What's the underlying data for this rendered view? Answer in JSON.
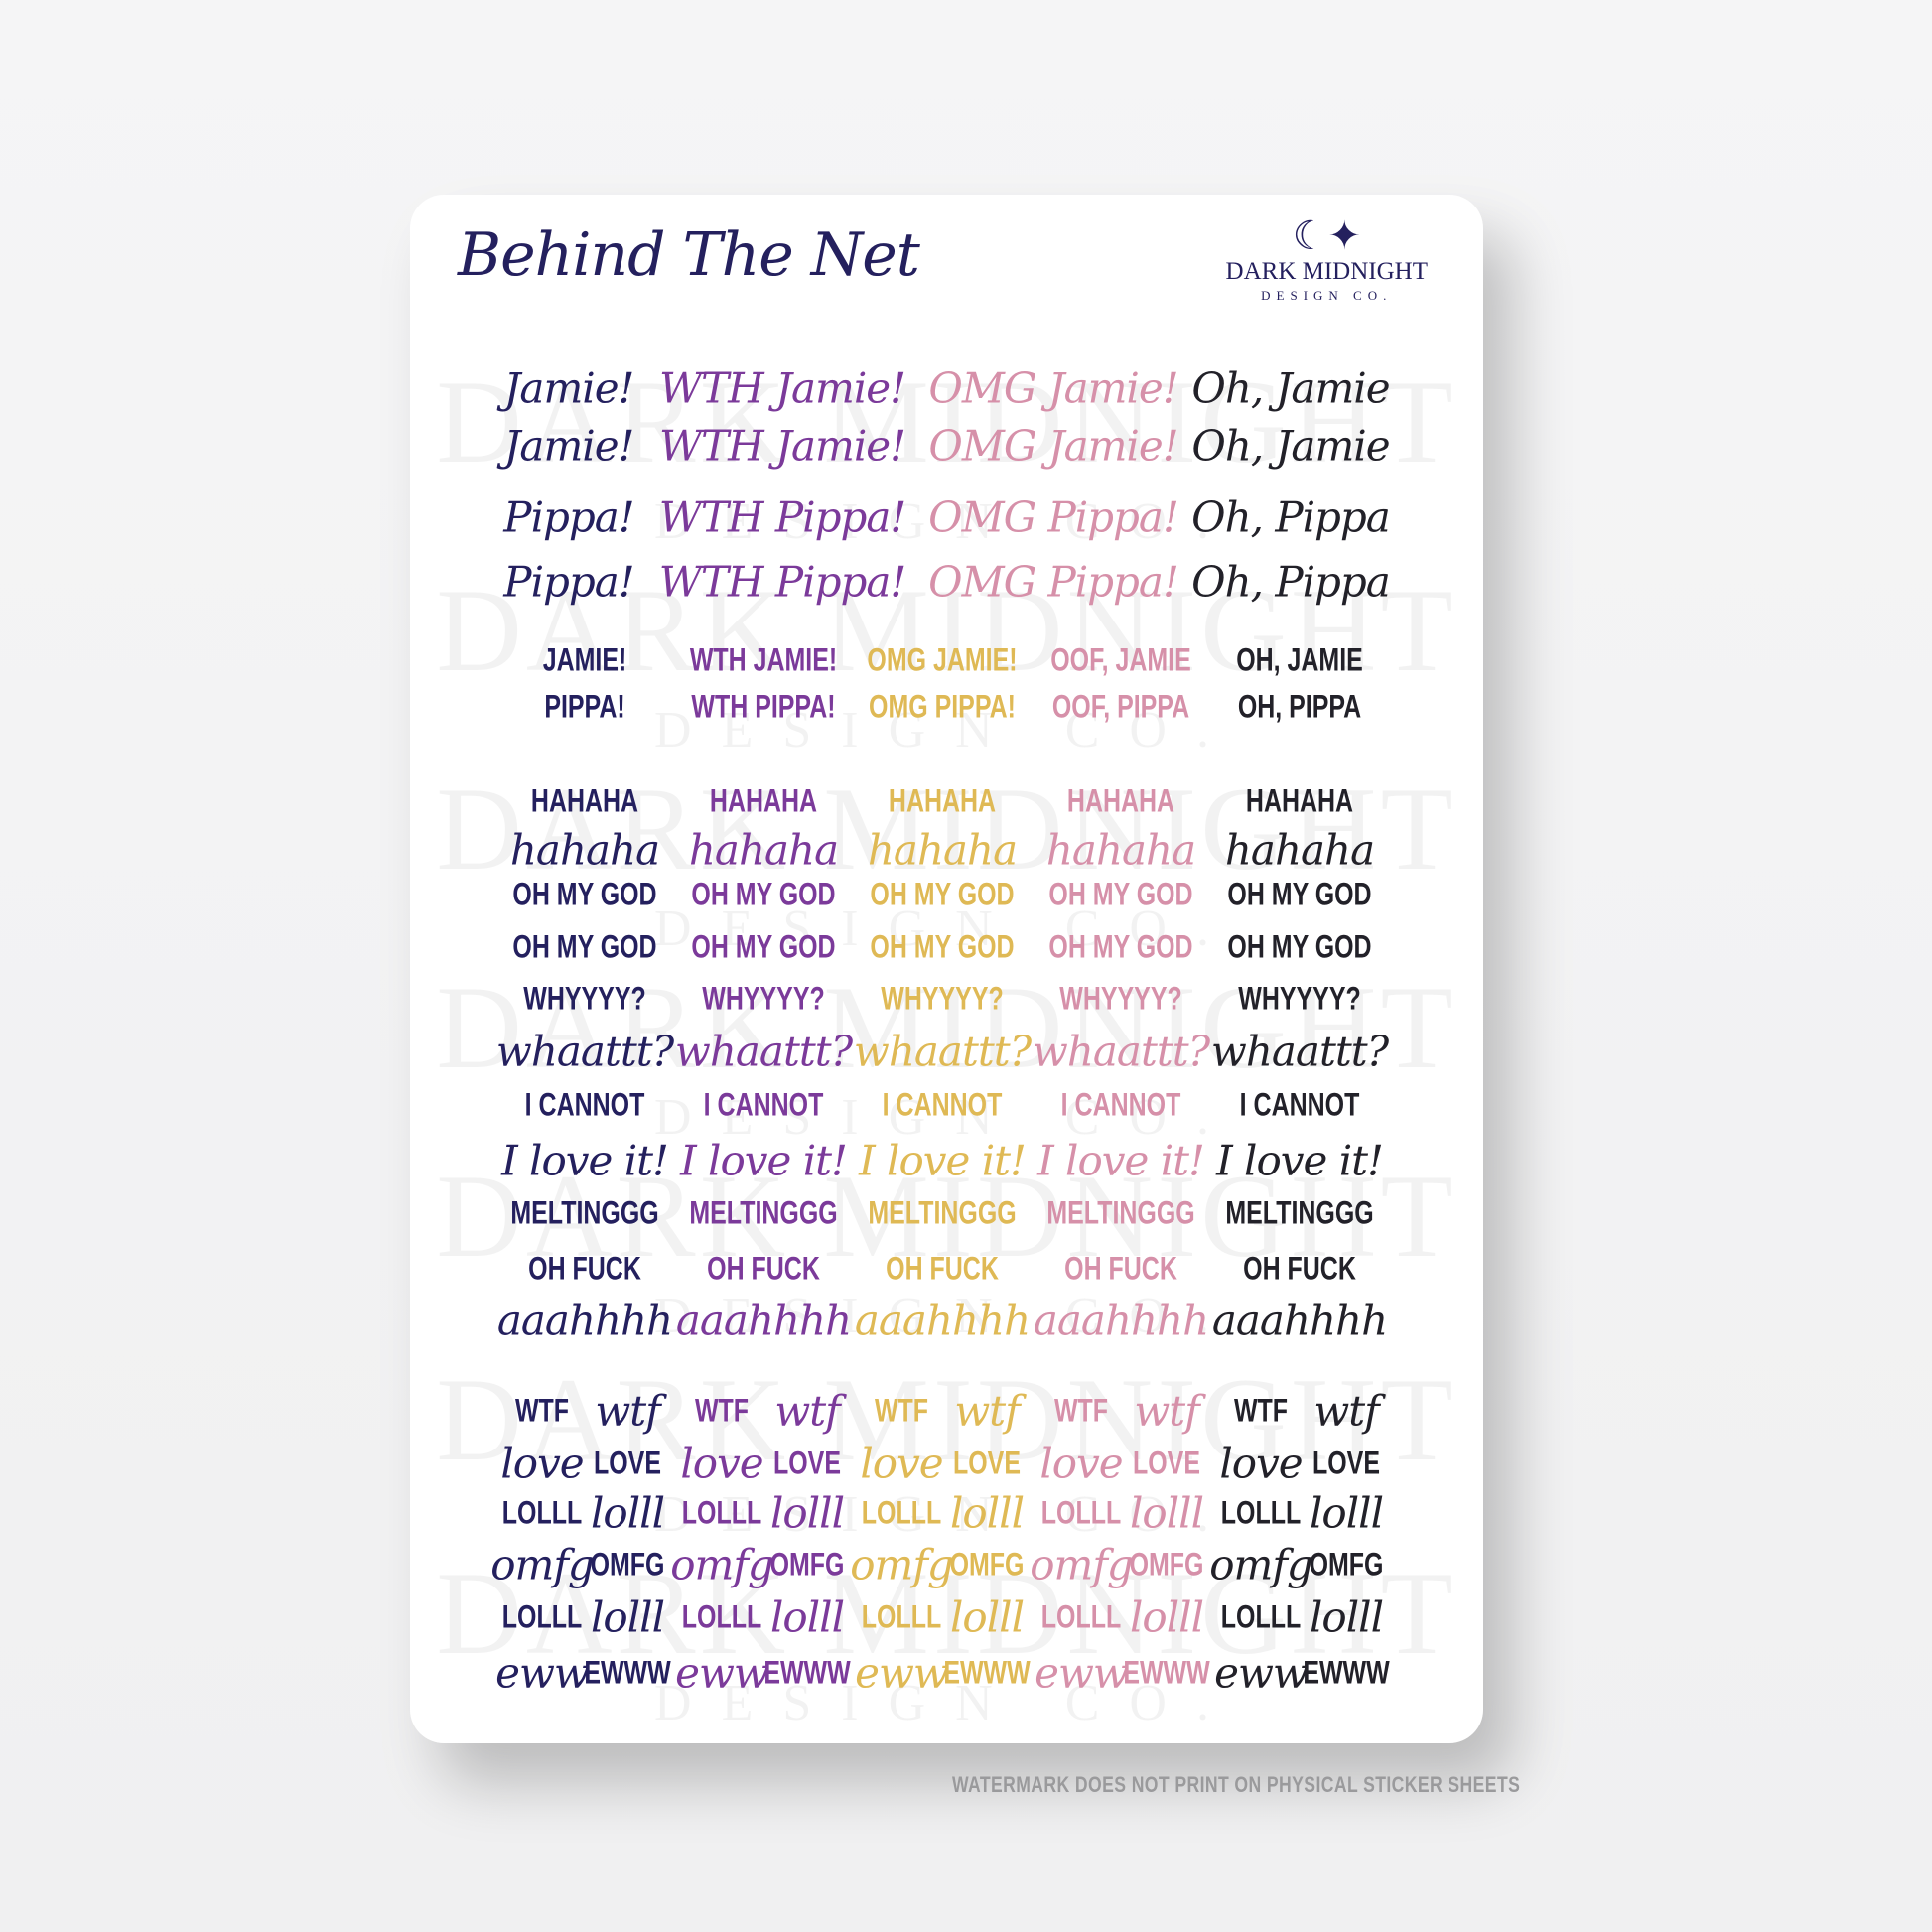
{
  "sheet": {
    "title": "Behind The Net",
    "logo": {
      "icon": "crescent-moon-star-icon",
      "line1": "DARK MIDNIGHT",
      "line2": "DESIGN CO."
    },
    "watermark": {
      "line1": "DARK MIDNIGHT",
      "line2": "DESIGN CO."
    }
  },
  "colors": {
    "navy": "#24205e",
    "purple": "#7b3a9a",
    "gold": "#dfb955",
    "pink": "#d690a9",
    "black": "#222129"
  },
  "section1_script": {
    "colors": [
      "navy",
      "purple",
      "pink",
      "black"
    ],
    "rows": [
      [
        "Jamie!",
        "WTH Jamie!",
        "OMG Jamie!",
        "Oh, Jamie"
      ],
      [
        "Jamie!",
        "WTH Jamie!",
        "OMG Jamie!",
        "Oh, Jamie"
      ],
      [
        "Pippa!",
        "WTH Pippa!",
        "OMG Pippa!",
        "Oh, Pippa"
      ],
      [
        "Pippa!",
        "WTH Pippa!",
        "OMG Pippa!",
        "Oh, Pippa"
      ]
    ]
  },
  "section1_bold": {
    "colors": [
      "navy",
      "purple",
      "gold",
      "pink",
      "black"
    ],
    "rows": [
      [
        "JAMIE!",
        "WTH JAMIE!",
        "OMG JAMIE!",
        "OOF, JAMIE",
        "OH, JAMIE"
      ],
      [
        "PIPPA!",
        "WTH PIPPA!",
        "OMG PIPPA!",
        "OOF, PIPPA",
        "OH, PIPPA"
      ]
    ]
  },
  "section2": {
    "colors": [
      "navy",
      "purple",
      "gold",
      "pink",
      "black"
    ],
    "rows": [
      {
        "text": "HAHAHA",
        "style": "bold"
      },
      {
        "text": "hahaha",
        "style": "script"
      },
      {
        "text": "OH MY GOD",
        "style": "bold"
      },
      {
        "text": "OH MY GOD",
        "style": "bold"
      },
      {
        "text": "WHYYYY?",
        "style": "bold"
      },
      {
        "text": "whaattt?",
        "style": "script"
      },
      {
        "text": "I CANNOT",
        "style": "bold"
      },
      {
        "text": "I love it!",
        "style": "script"
      },
      {
        "text": "MELTINGGG",
        "style": "bold"
      },
      {
        "text": "OH FUCK",
        "style": "bold"
      },
      {
        "text": "aaahhhh",
        "style": "script"
      }
    ]
  },
  "section3": {
    "colors": [
      "navy",
      "purple",
      "gold",
      "pink",
      "black"
    ],
    "rows": [
      [
        {
          "text": "WTF",
          "style": "bold"
        },
        {
          "text": "wtf",
          "style": "script"
        }
      ],
      [
        {
          "text": "love",
          "style": "script"
        },
        {
          "text": "LOVE",
          "style": "bold"
        }
      ],
      [
        {
          "text": "LOLLL",
          "style": "bold"
        },
        {
          "text": "lolll",
          "style": "script"
        }
      ],
      [
        {
          "text": "omfg",
          "style": "script"
        },
        {
          "text": "OMFG",
          "style": "bold"
        }
      ],
      [
        {
          "text": "LOLLL",
          "style": "bold"
        },
        {
          "text": "lolll",
          "style": "script"
        }
      ],
      [
        {
          "text": "eww",
          "style": "script"
        },
        {
          "text": "EWWW",
          "style": "bold"
        }
      ]
    ]
  },
  "note": "WATERMARK DOES NOT PRINT ON PHYSICAL STICKER SHEETS"
}
